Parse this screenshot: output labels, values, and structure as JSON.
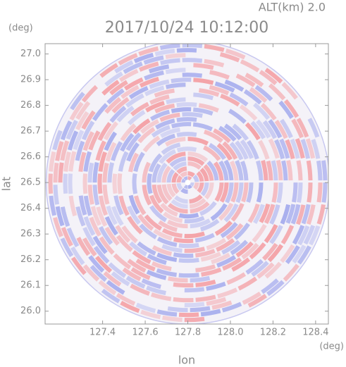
{
  "chart_data": {
    "type": "radar-ppi",
    "title": "2017/10/24 10:12:00",
    "subtitle": "ALT(km) 2.0",
    "x_label": "lon",
    "y_label": "lat",
    "x_unit": "(deg)",
    "y_unit": "(deg)",
    "xlim": [
      127.13,
      128.46
    ],
    "ylim": [
      25.95,
      27.04
    ],
    "xticks": [
      127.4,
      127.6,
      127.8,
      {
        "value": 128.0,
        "label": "128.0"
      },
      128.2,
      128.4
    ],
    "yticks": [
      {
        "value": 26.0,
        "label": "26.0"
      },
      26.1,
      26.2,
      26.3,
      26.4,
      26.5,
      26.6,
      26.7,
      26.8,
      26.9,
      {
        "value": 27.0,
        "label": "27.0"
      }
    ],
    "center": [
      127.8,
      26.5
    ]
  }
}
